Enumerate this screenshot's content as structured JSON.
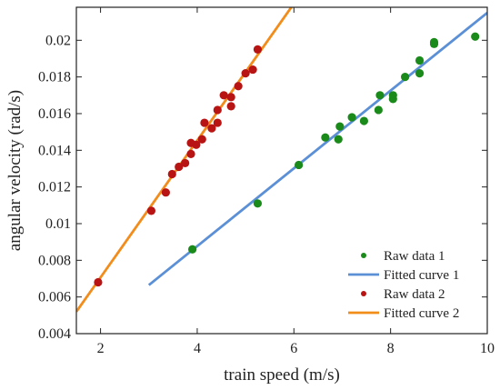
{
  "chart_data": {
    "type": "scatter",
    "xlabel": "train speed (m/s)",
    "ylabel": "angular velocity (rad/s)",
    "xlim": [
      1.5,
      10
    ],
    "ylim": [
      0.004,
      0.0218
    ],
    "x_ticks": [
      2,
      4,
      6,
      8,
      10
    ],
    "x_tick_labels": [
      "2",
      "4",
      "6",
      "8",
      "10"
    ],
    "y_ticks": [
      0.004,
      0.006,
      0.008,
      0.01,
      0.012,
      0.014,
      0.016,
      0.018,
      0.02
    ],
    "y_tick_labels": [
      "0.004",
      "0.006",
      "0.008",
      "0.01",
      "0.012",
      "0.014",
      "0.016",
      "0.018",
      "0.02"
    ],
    "grid": false,
    "legend_position": "bottom-right",
    "series": [
      {
        "name": "Raw data 1",
        "kind": "points",
        "color": "#1a8a1a",
        "points": [
          [
            3.9,
            0.0086
          ],
          [
            5.25,
            0.0111
          ],
          [
            6.1,
            0.0132
          ],
          [
            6.65,
            0.0147
          ],
          [
            6.92,
            0.0146
          ],
          [
            6.95,
            0.0153
          ],
          [
            7.2,
            0.0158
          ],
          [
            7.45,
            0.0156
          ],
          [
            7.75,
            0.0162
          ],
          [
            7.78,
            0.017
          ],
          [
            8.05,
            0.0168
          ],
          [
            8.05,
            0.017
          ],
          [
            8.3,
            0.018
          ],
          [
            8.6,
            0.0182
          ],
          [
            8.6,
            0.0189
          ],
          [
            8.9,
            0.0198
          ],
          [
            8.9,
            0.0199
          ],
          [
            9.75,
            0.0202
          ]
        ]
      },
      {
        "name": "Fitted curve 1",
        "kind": "line",
        "color": "#5b8fd6",
        "line": [
          [
            3.0,
            0.00665
          ],
          [
            10.0,
            0.0215
          ]
        ]
      },
      {
        "name": "Raw data 2",
        "kind": "points",
        "color": "#b81414",
        "points": [
          [
            1.95,
            0.0068
          ],
          [
            3.05,
            0.0107
          ],
          [
            3.35,
            0.0117
          ],
          [
            3.48,
            0.0127
          ],
          [
            3.62,
            0.0131
          ],
          [
            3.75,
            0.0133
          ],
          [
            3.87,
            0.0138
          ],
          [
            3.87,
            0.0144
          ],
          [
            3.98,
            0.0143
          ],
          [
            4.1,
            0.0146
          ],
          [
            4.15,
            0.0155
          ],
          [
            4.3,
            0.0152
          ],
          [
            4.42,
            0.0155
          ],
          [
            4.42,
            0.0162
          ],
          [
            4.55,
            0.017
          ],
          [
            4.7,
            0.0164
          ],
          [
            4.7,
            0.0169
          ],
          [
            4.85,
            0.0175
          ],
          [
            5.0,
            0.0182
          ],
          [
            5.15,
            0.0184
          ],
          [
            5.25,
            0.0195
          ]
        ]
      },
      {
        "name": "Fitted curve 2",
        "kind": "line",
        "color": "#f28c1a",
        "line": [
          [
            1.5,
            0.0052
          ],
          [
            6.0,
            0.022
          ]
        ]
      }
    ]
  }
}
